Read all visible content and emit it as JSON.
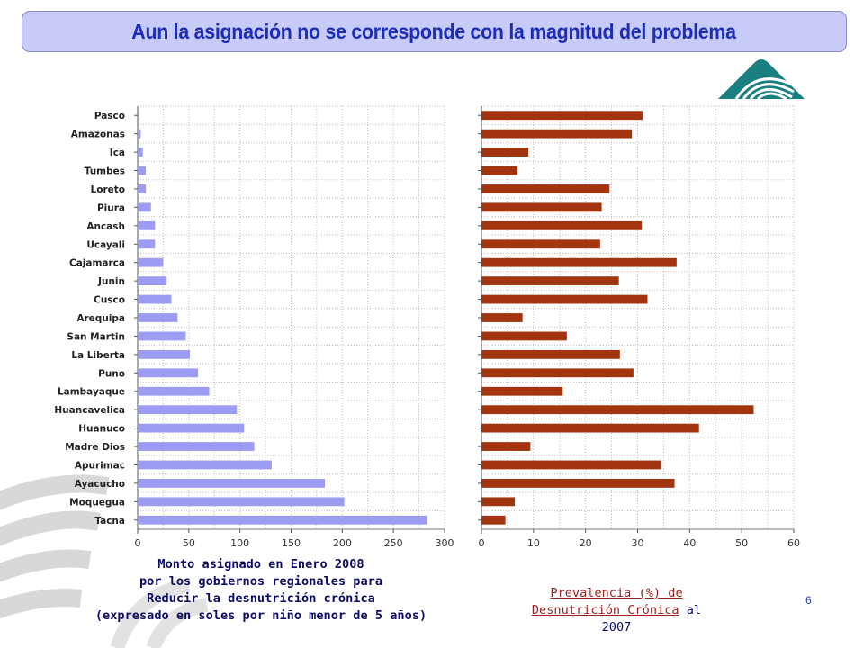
{
  "title": "Aun la asignación no se corresponde con la magnitud del problema",
  "page_number": "6",
  "colors": {
    "left_bars": "#9c9cf2",
    "right_bars": "#a23510",
    "title_text": "#1c2db8",
    "title_bg": "#c8caf7",
    "logo": "#1a7f80"
  },
  "icons": {
    "logo": "andes-logo-icon"
  },
  "left_caption": {
    "line1": "Monto asignado en Enero 2008",
    "line2": "por los gobiernos regionales para",
    "line3": "Reducir la desnutrición crónica",
    "line4": "(expresado en soles por niño menor de 5 años)"
  },
  "right_caption": {
    "part1": "Prevalencia (%) de",
    "part2": "Desnutrición Crónica",
    "part3": " al",
    "part4": "2007"
  },
  "chart_data": [
    {
      "type": "bar",
      "orientation": "horizontal",
      "categories": [
        "Pasco",
        "Amazonas",
        "Ica",
        "Tumbes",
        "Loreto",
        "Piura",
        "Ancash",
        "Ucayali",
        "Cajamarca",
        "Junin",
        "Cusco",
        "Arequipa",
        "San Martin",
        "La Liberta",
        "Puno",
        "Lambayaque",
        "Huancavelica",
        "Huanuco",
        "Madre Dios",
        "Apurimac",
        "Ayacucho",
        "Moquegua",
        "Tacna"
      ],
      "values": [
        1,
        3,
        5,
        8,
        8,
        13,
        17,
        17,
        25,
        28,
        33,
        39,
        47,
        51,
        59,
        70,
        97,
        104,
        114,
        131,
        183,
        202,
        283
      ],
      "xlim": [
        0,
        300
      ],
      "xticks": [
        0,
        50,
        100,
        150,
        200,
        250,
        300
      ],
      "grid": true
    },
    {
      "type": "bar",
      "orientation": "horizontal",
      "categories": [
        "Pasco",
        "Amazonas",
        "Ica",
        "Tumbes",
        "Loreto",
        "Piura",
        "Ancash",
        "Ucayali",
        "Cajamarca",
        "Junin",
        "Cusco",
        "Arequipa",
        "San Martin",
        "La Liberta",
        "Puno",
        "Lambayaque",
        "Huancavelica",
        "Huanuco",
        "Madre Dios",
        "Apurimac",
        "Ayacucho",
        "Moquegua",
        "Tacna"
      ],
      "values": [
        31.0,
        28.9,
        9.0,
        6.9,
        24.6,
        23.1,
        30.8,
        22.8,
        37.5,
        26.4,
        31.9,
        7.9,
        16.4,
        26.6,
        29.2,
        15.6,
        52.3,
        41.8,
        9.4,
        34.5,
        37.1,
        6.4,
        4.6
      ],
      "xlim": [
        0,
        60
      ],
      "xticks": [
        0,
        10,
        20,
        30,
        40,
        50,
        60
      ],
      "grid": true
    }
  ]
}
